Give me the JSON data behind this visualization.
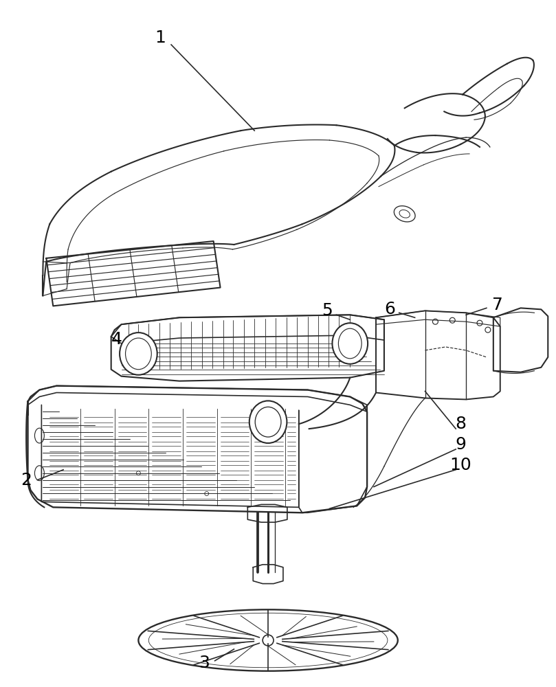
{
  "background_color": "#ffffff",
  "line_color": "#2a2a2a",
  "label_color": "#000000",
  "label_fontsize": 18,
  "lw": 1.2,
  "fig_w": 8.09,
  "fig_h": 10.0,
  "dpi": 100,
  "xlim": [
    0,
    809
  ],
  "ylim": [
    0,
    1000
  ]
}
